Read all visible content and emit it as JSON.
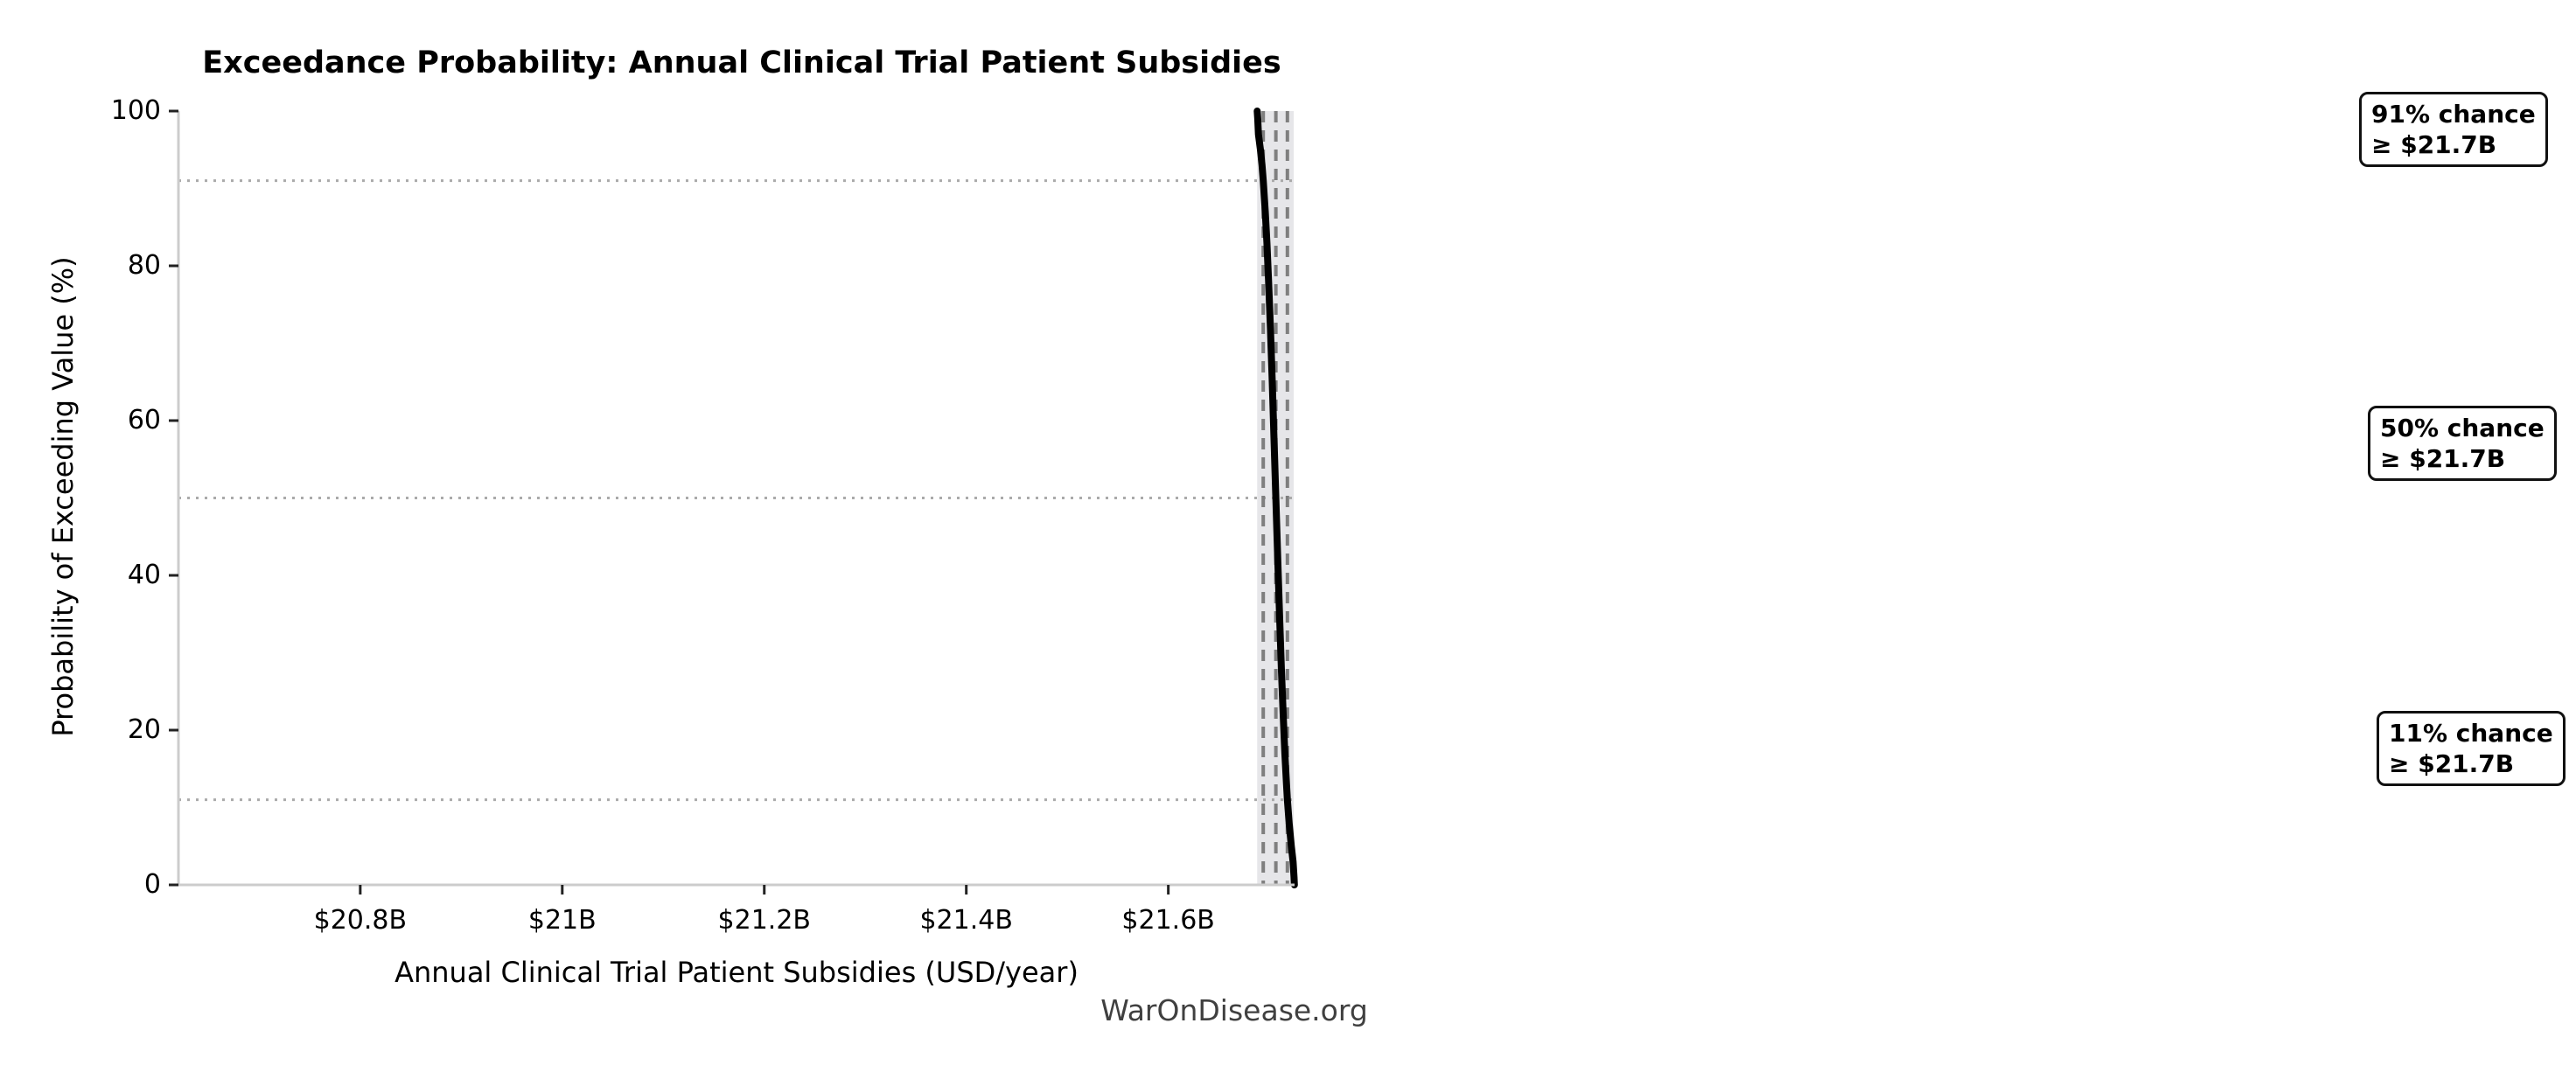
{
  "title": "Exceedance Probability: Annual Clinical Trial Patient Subsidies",
  "footer": "WarOnDisease.org",
  "chart_data": {
    "type": "line",
    "title": "Exceedance Probability: Annual Clinical Trial Patient Subsidies",
    "xlabel": "Annual Clinical Trial Patient Subsidies (USD/year)",
    "ylabel": "Probability of Exceeding Value (%)",
    "x_unit": "USD billions per year",
    "xlim": [
      20.62,
      21.725
    ],
    "ylim": [
      0,
      100
    ],
    "grid": "horizontal dotted lines at key probabilities only",
    "legend": "none",
    "xticks": [
      {
        "value": 20.8,
        "label": "$20.8B"
      },
      {
        "value": 21.0,
        "label": "$21B"
      },
      {
        "value": 21.2,
        "label": "$21.2B"
      },
      {
        "value": 21.4,
        "label": "$21.4B"
      },
      {
        "value": 21.6,
        "label": "$21.6B"
      }
    ],
    "yticks": [
      {
        "value": 0,
        "label": "0"
      },
      {
        "value": 20,
        "label": "20"
      },
      {
        "value": 40,
        "label": "40"
      },
      {
        "value": 60,
        "label": "60"
      },
      {
        "value": 80,
        "label": "80"
      },
      {
        "value": 100,
        "label": "100"
      }
    ],
    "series": [
      {
        "name": "exceedance-curve",
        "color": "#000000",
        "linewidth": 8,
        "points": [
          [
            21.688,
            100
          ],
          [
            21.6885,
            99
          ],
          [
            21.6892,
            97
          ],
          [
            21.6912,
            95
          ],
          [
            21.6928,
            93
          ],
          [
            21.694,
            91
          ],
          [
            21.696,
            87
          ],
          [
            21.6976,
            83
          ],
          [
            21.6993,
            78
          ],
          [
            21.7011,
            72
          ],
          [
            21.7029,
            65
          ],
          [
            21.7046,
            58
          ],
          [
            21.7065,
            50
          ],
          [
            21.7084,
            42
          ],
          [
            21.7101,
            35
          ],
          [
            21.7119,
            28
          ],
          [
            21.7137,
            22
          ],
          [
            21.7154,
            17
          ],
          [
            21.717,
            13
          ],
          [
            21.7179,
            11
          ],
          [
            21.7196,
            8
          ],
          [
            21.7218,
            5
          ],
          [
            21.7235,
            3
          ],
          [
            21.7245,
            1
          ],
          [
            21.7248,
            0
          ]
        ]
      }
    ],
    "uncertainty_band": {
      "from": 21.688,
      "to": 21.7242,
      "color": "#e6e6e9"
    },
    "threshold_lines": [
      {
        "value": 21.694,
        "probability": 91,
        "style": "dashed",
        "color": "#7f7f7f"
      },
      {
        "value": 21.7065,
        "probability": 50,
        "style": "dashed",
        "color": "#7f7f7f"
      },
      {
        "value": 21.7179,
        "probability": 11,
        "style": "dashed",
        "color": "#7f7f7f"
      }
    ],
    "probability_gridlines": [
      {
        "probability": 91,
        "style": "dotted",
        "color": "#aaaaaa"
      },
      {
        "probability": 50,
        "style": "dotted",
        "color": "#aaaaaa"
      },
      {
        "probability": 11,
        "style": "dotted",
        "color": "#aaaaaa"
      }
    ],
    "annotations": [
      {
        "line1": "91% chance",
        "line2": "≥ $21.7B",
        "probability": 91
      },
      {
        "line1": "50% chance",
        "line2": "≥ $21.7B",
        "probability": 50
      },
      {
        "line1": "11% chance",
        "line2": "≥ $21.7B",
        "probability": 11
      }
    ],
    "colors": {
      "curve": "#000000",
      "band": "#e6e6e9",
      "threshold_dashed": "#7f7f7f",
      "gridline_dotted": "#aaaaaa",
      "spine": "#cccccc",
      "tick_mark": "#222222",
      "footer_text": "#404040",
      "background": "#ffffff"
    }
  }
}
